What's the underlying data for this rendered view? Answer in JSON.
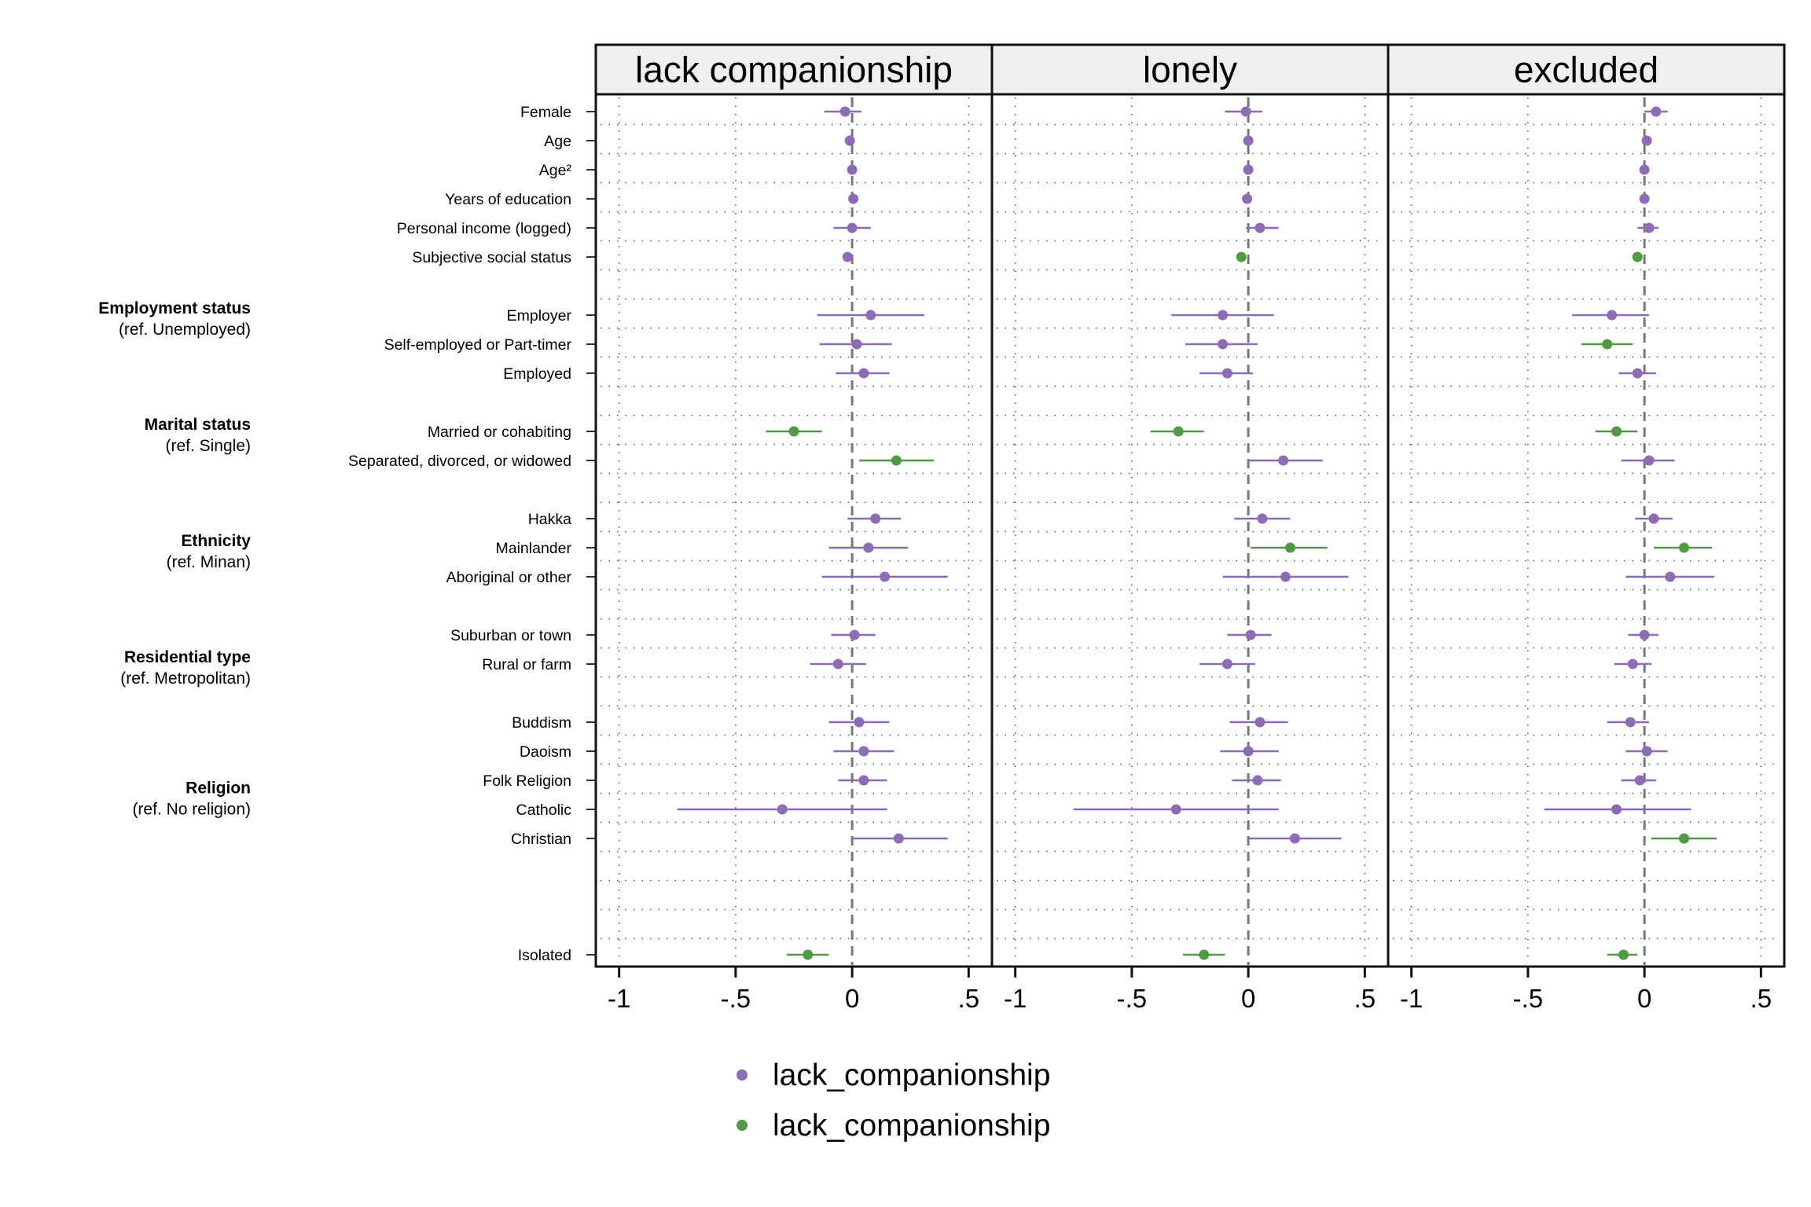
{
  "chart_data": {
    "type": "scatter",
    "subtype": "coefficient-plot",
    "panels": [
      "lack companionship",
      "lonely",
      "excluded"
    ],
    "x_ticks": [
      {
        "value": -1,
        "label": "-1"
      },
      {
        "value": -0.5,
        "label": "-.5"
      },
      {
        "value": 0,
        "label": "0"
      },
      {
        "value": 0.5,
        "label": ".5"
      }
    ],
    "xlim": [
      -1.1,
      0.6
    ],
    "reference_line": 0,
    "grid": true,
    "legend": {
      "position": "bottom",
      "entries": [
        {
          "label": "lack_companionship",
          "color": "#8e6bb5"
        },
        {
          "label": "lack_companionship",
          "color": "#509a43"
        }
      ]
    },
    "colors": {
      "purple": "#8e6bb5",
      "green": "#509a43"
    },
    "groups": [
      {
        "title": "Employment status",
        "ref": "(ref. Unemployed)",
        "anchor_rows": [
          7,
          8
        ]
      },
      {
        "title": "Marital status",
        "ref": "(ref. Single)",
        "anchor_rows": [
          11,
          12
        ]
      },
      {
        "title": "Ethnicity",
        "ref": "(ref. Minan)",
        "anchor_rows": [
          15,
          16
        ]
      },
      {
        "title": "Residential type",
        "ref": "(ref. Metropolitan)",
        "anchor_rows": [
          19,
          20
        ]
      },
      {
        "title": "Religion",
        "ref": "(ref. No religion)",
        "anchor_rows": [
          23.5,
          24.5
        ]
      }
    ],
    "row_labels": [
      {
        "row": 0,
        "label": "Female"
      },
      {
        "row": 1,
        "label": "Age"
      },
      {
        "row": 2,
        "label": "Age²"
      },
      {
        "row": 3,
        "label": "Years of education"
      },
      {
        "row": 4,
        "label": "Personal income (logged)"
      },
      {
        "row": 5,
        "label": "Subjective social status"
      },
      {
        "row": 7,
        "label": "Employer"
      },
      {
        "row": 8,
        "label": "Self-employed or Part-timer"
      },
      {
        "row": 9,
        "label": "Employed"
      },
      {
        "row": 11,
        "label": "Married or cohabiting"
      },
      {
        "row": 12,
        "label": "Separated, divorced, or widowed"
      },
      {
        "row": 14,
        "label": "Hakka"
      },
      {
        "row": 15,
        "label": "Mainlander"
      },
      {
        "row": 16,
        "label": "Aboriginal or other"
      },
      {
        "row": 18,
        "label": "Suburban or town"
      },
      {
        "row": 19,
        "label": "Rural or farm"
      },
      {
        "row": 21,
        "label": "Buddism"
      },
      {
        "row": 22,
        "label": "Daoism"
      },
      {
        "row": 23,
        "label": "Folk Religion"
      },
      {
        "row": 24,
        "label": "Catholic"
      },
      {
        "row": 25,
        "label": "Christian"
      },
      {
        "row": 29,
        "label": "Isolated"
      }
    ],
    "total_rows": 30,
    "series": [
      {
        "panel": "lack companionship",
        "points": [
          {
            "row": 0,
            "est": -0.03,
            "lo": -0.12,
            "hi": 0.04,
            "color": "purple"
          },
          {
            "row": 1,
            "est": -0.01,
            "lo": -0.015,
            "hi": -0.005,
            "color": "purple"
          },
          {
            "row": 2,
            "est": 0.0,
            "lo": -0.005,
            "hi": 0.005,
            "color": "purple"
          },
          {
            "row": 3,
            "est": 0.005,
            "lo": -0.003,
            "hi": 0.013,
            "color": "purple"
          },
          {
            "row": 4,
            "est": 0.0,
            "lo": -0.08,
            "hi": 0.08,
            "color": "purple"
          },
          {
            "row": 5,
            "est": -0.02,
            "lo": -0.04,
            "hi": 0.0,
            "color": "purple"
          },
          {
            "row": 7,
            "est": 0.08,
            "lo": -0.15,
            "hi": 0.31,
            "color": "purple"
          },
          {
            "row": 8,
            "est": 0.02,
            "lo": -0.14,
            "hi": 0.17,
            "color": "purple"
          },
          {
            "row": 9,
            "est": 0.05,
            "lo": -0.07,
            "hi": 0.16,
            "color": "purple"
          },
          {
            "row": 11,
            "est": -0.25,
            "lo": -0.37,
            "hi": -0.13,
            "color": "green"
          },
          {
            "row": 12,
            "est": 0.19,
            "lo": 0.03,
            "hi": 0.35,
            "color": "green"
          },
          {
            "row": 14,
            "est": 0.1,
            "lo": -0.02,
            "hi": 0.21,
            "color": "purple"
          },
          {
            "row": 15,
            "est": 0.07,
            "lo": -0.1,
            "hi": 0.24,
            "color": "purple"
          },
          {
            "row": 16,
            "est": 0.14,
            "lo": -0.13,
            "hi": 0.41,
            "color": "purple"
          },
          {
            "row": 18,
            "est": 0.01,
            "lo": -0.09,
            "hi": 0.1,
            "color": "purple"
          },
          {
            "row": 19,
            "est": -0.06,
            "lo": -0.18,
            "hi": 0.06,
            "color": "purple"
          },
          {
            "row": 21,
            "est": 0.03,
            "lo": -0.1,
            "hi": 0.16,
            "color": "purple"
          },
          {
            "row": 22,
            "est": 0.05,
            "lo": -0.08,
            "hi": 0.18,
            "color": "purple"
          },
          {
            "row": 23,
            "est": 0.05,
            "lo": -0.06,
            "hi": 0.15,
            "color": "purple"
          },
          {
            "row": 24,
            "est": -0.3,
            "lo": -0.75,
            "hi": 0.15,
            "color": "purple"
          },
          {
            "row": 25,
            "est": 0.2,
            "lo": 0.0,
            "hi": 0.41,
            "color": "purple"
          },
          {
            "row": 29,
            "est": -0.19,
            "lo": -0.28,
            "hi": -0.1,
            "color": "green"
          }
        ]
      },
      {
        "panel": "lonely",
        "points": [
          {
            "row": 0,
            "est": -0.01,
            "lo": -0.1,
            "hi": 0.06,
            "color": "purple"
          },
          {
            "row": 1,
            "est": 0.0,
            "lo": -0.005,
            "hi": 0.005,
            "color": "purple"
          },
          {
            "row": 2,
            "est": 0.0,
            "lo": -0.005,
            "hi": 0.005,
            "color": "purple"
          },
          {
            "row": 3,
            "est": -0.005,
            "lo": -0.012,
            "hi": 0.002,
            "color": "purple"
          },
          {
            "row": 4,
            "est": 0.05,
            "lo": -0.01,
            "hi": 0.13,
            "color": "purple"
          },
          {
            "row": 5,
            "est": -0.03,
            "lo": -0.04,
            "hi": -0.02,
            "color": "green"
          },
          {
            "row": 7,
            "est": -0.11,
            "lo": -0.33,
            "hi": 0.11,
            "color": "purple"
          },
          {
            "row": 8,
            "est": -0.11,
            "lo": -0.27,
            "hi": 0.04,
            "color": "purple"
          },
          {
            "row": 9,
            "est": -0.09,
            "lo": -0.21,
            "hi": 0.02,
            "color": "purple"
          },
          {
            "row": 11,
            "est": -0.3,
            "lo": -0.42,
            "hi": -0.19,
            "color": "green"
          },
          {
            "row": 12,
            "est": 0.15,
            "lo": 0.0,
            "hi": 0.32,
            "color": "purple"
          },
          {
            "row": 14,
            "est": 0.06,
            "lo": -0.06,
            "hi": 0.18,
            "color": "purple"
          },
          {
            "row": 15,
            "est": 0.18,
            "lo": 0.01,
            "hi": 0.34,
            "color": "green"
          },
          {
            "row": 16,
            "est": 0.16,
            "lo": -0.11,
            "hi": 0.43,
            "color": "purple"
          },
          {
            "row": 18,
            "est": 0.01,
            "lo": -0.09,
            "hi": 0.1,
            "color": "purple"
          },
          {
            "row": 19,
            "est": -0.09,
            "lo": -0.21,
            "hi": 0.03,
            "color": "purple"
          },
          {
            "row": 21,
            "est": 0.05,
            "lo": -0.08,
            "hi": 0.17,
            "color": "purple"
          },
          {
            "row": 22,
            "est": 0.0,
            "lo": -0.12,
            "hi": 0.13,
            "color": "purple"
          },
          {
            "row": 23,
            "est": 0.04,
            "lo": -0.07,
            "hi": 0.14,
            "color": "purple"
          },
          {
            "row": 24,
            "est": -0.31,
            "lo": -0.75,
            "hi": 0.13,
            "color": "purple"
          },
          {
            "row": 25,
            "est": 0.2,
            "lo": 0.0,
            "hi": 0.4,
            "color": "purple"
          },
          {
            "row": 29,
            "est": -0.19,
            "lo": -0.28,
            "hi": -0.1,
            "color": "green"
          }
        ]
      },
      {
        "panel": "excluded",
        "points": [
          {
            "row": 0,
            "est": 0.05,
            "lo": 0.0,
            "hi": 0.1,
            "color": "purple"
          },
          {
            "row": 1,
            "est": 0.01,
            "lo": 0.005,
            "hi": 0.015,
            "color": "purple"
          },
          {
            "row": 2,
            "est": 0.0,
            "lo": -0.005,
            "hi": 0.005,
            "color": "purple"
          },
          {
            "row": 3,
            "est": 0.0,
            "lo": -0.005,
            "hi": 0.005,
            "color": "purple"
          },
          {
            "row": 4,
            "est": 0.02,
            "lo": -0.03,
            "hi": 0.06,
            "color": "purple"
          },
          {
            "row": 5,
            "est": -0.03,
            "lo": -0.05,
            "hi": -0.01,
            "color": "green"
          },
          {
            "row": 7,
            "est": -0.14,
            "lo": -0.31,
            "hi": 0.02,
            "color": "purple"
          },
          {
            "row": 8,
            "est": -0.16,
            "lo": -0.27,
            "hi": -0.05,
            "color": "green"
          },
          {
            "row": 9,
            "est": -0.03,
            "lo": -0.11,
            "hi": 0.05,
            "color": "purple"
          },
          {
            "row": 11,
            "est": -0.12,
            "lo": -0.21,
            "hi": -0.03,
            "color": "green"
          },
          {
            "row": 12,
            "est": 0.02,
            "lo": -0.1,
            "hi": 0.13,
            "color": "purple"
          },
          {
            "row": 14,
            "est": 0.04,
            "lo": -0.04,
            "hi": 0.12,
            "color": "purple"
          },
          {
            "row": 15,
            "est": 0.17,
            "lo": 0.04,
            "hi": 0.29,
            "color": "green"
          },
          {
            "row": 16,
            "est": 0.11,
            "lo": -0.08,
            "hi": 0.3,
            "color": "purple"
          },
          {
            "row": 18,
            "est": 0.0,
            "lo": -0.07,
            "hi": 0.06,
            "color": "purple"
          },
          {
            "row": 19,
            "est": -0.05,
            "lo": -0.13,
            "hi": 0.03,
            "color": "purple"
          },
          {
            "row": 21,
            "est": -0.06,
            "lo": -0.16,
            "hi": 0.02,
            "color": "purple"
          },
          {
            "row": 22,
            "est": 0.01,
            "lo": -0.08,
            "hi": 0.1,
            "color": "purple"
          },
          {
            "row": 23,
            "est": -0.02,
            "lo": -0.1,
            "hi": 0.05,
            "color": "purple"
          },
          {
            "row": 24,
            "est": -0.12,
            "lo": -0.43,
            "hi": 0.2,
            "color": "purple"
          },
          {
            "row": 25,
            "est": 0.17,
            "lo": 0.03,
            "hi": 0.31,
            "color": "green"
          },
          {
            "row": 29,
            "est": -0.09,
            "lo": -0.16,
            "hi": -0.03,
            "color": "green"
          }
        ]
      }
    ]
  }
}
